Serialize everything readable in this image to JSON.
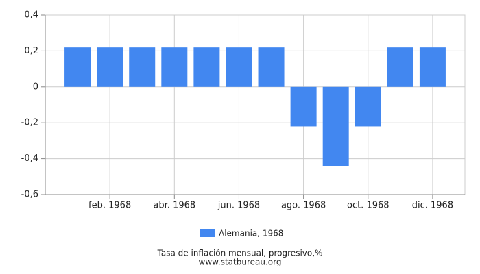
{
  "chart_data": {
    "type": "bar",
    "categories": [
      null,
      "feb. 1968",
      null,
      "abr. 1968",
      null,
      "jun. 1968",
      null,
      "ago. 1968",
      null,
      "oct. 1968",
      null,
      "dic. 1968"
    ],
    "series": [
      {
        "name": "Alemania, 1968",
        "color": "#4287f0",
        "values": [
          0.22,
          0.22,
          0.22,
          0.22,
          0.22,
          0.22,
          0.22,
          -0.22,
          -0.44,
          -0.22,
          0.22,
          0.22
        ]
      }
    ],
    "ylim": [
      -0.6,
      0.4
    ],
    "yticks": [
      {
        "value": -0.6,
        "label": "-0,6"
      },
      {
        "value": -0.4,
        "label": "-0,4"
      },
      {
        "value": -0.2,
        "label": "-0,2"
      },
      0,
      {
        "value": 0.2,
        "label": "0,2"
      },
      {
        "value": 0.4,
        "label": "0,4"
      }
    ],
    "grid": true,
    "x_label": "Tasa de inflación mensual, progresivo,%",
    "source": "www.statbureau.org"
  }
}
